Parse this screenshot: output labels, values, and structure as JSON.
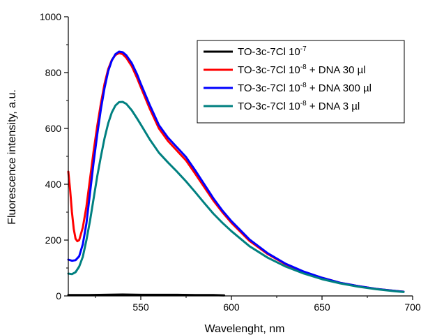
{
  "chart_data": {
    "type": "line",
    "xlabel": "Wavelenght, nm",
    "ylabel": "Fluorescence intensity, a.u.",
    "xlim": [
      510,
      700
    ],
    "ylim": [
      0,
      1000
    ],
    "x_ticks": [
      550,
      600,
      650,
      700
    ],
    "y_ticks": [
      0,
      200,
      400,
      600,
      800,
      1000
    ],
    "grid": false,
    "legend_position": "top-right",
    "series": [
      {
        "name_main": "TO-3c-7Cl 10",
        "name_sup": "-7",
        "name_tail": "",
        "color": "#000000",
        "points": [
          [
            510,
            3
          ],
          [
            520,
            3
          ],
          [
            530,
            4
          ],
          [
            540,
            5
          ],
          [
            550,
            4
          ],
          [
            560,
            4
          ],
          [
            570,
            4
          ],
          [
            580,
            3
          ],
          [
            590,
            3
          ],
          [
            596,
            2
          ]
        ]
      },
      {
        "name_main": "TO-3c-7Cl 10",
        "name_sup": "-8",
        "name_tail": " + DNA 30 µl",
        "color": "#ff0000",
        "points": [
          [
            510,
            445
          ],
          [
            511,
            380
          ],
          [
            512,
            300
          ],
          [
            513,
            240
          ],
          [
            514,
            205
          ],
          [
            515,
            196
          ],
          [
            516,
            200
          ],
          [
            518,
            245
          ],
          [
            520,
            320
          ],
          [
            522,
            420
          ],
          [
            524,
            520
          ],
          [
            526,
            610
          ],
          [
            528,
            690
          ],
          [
            530,
            760
          ],
          [
            532,
            812
          ],
          [
            534,
            845
          ],
          [
            536,
            863
          ],
          [
            538,
            870
          ],
          [
            540,
            866
          ],
          [
            542,
            853
          ],
          [
            545,
            823
          ],
          [
            548,
            780
          ],
          [
            550,
            748
          ],
          [
            555,
            670
          ],
          [
            560,
            600
          ],
          [
            565,
            555
          ],
          [
            570,
            520
          ],
          [
            575,
            485
          ],
          [
            580,
            438
          ],
          [
            585,
            390
          ],
          [
            590,
            342
          ],
          [
            595,
            300
          ],
          [
            600,
            262
          ],
          [
            610,
            197
          ],
          [
            620,
            150
          ],
          [
            630,
            113
          ],
          [
            640,
            86
          ],
          [
            650,
            65
          ],
          [
            660,
            47
          ],
          [
            670,
            35
          ],
          [
            680,
            25
          ],
          [
            690,
            18
          ],
          [
            695,
            15
          ]
        ]
      },
      {
        "name_main": "TO-3c-7Cl 10",
        "name_sup": "-8",
        "name_tail": " + DNA 300 µl",
        "color": "#0000ff",
        "points": [
          [
            510,
            130
          ],
          [
            512,
            126
          ],
          [
            514,
            128
          ],
          [
            516,
            142
          ],
          [
            518,
            185
          ],
          [
            520,
            260
          ],
          [
            522,
            370
          ],
          [
            524,
            480
          ],
          [
            526,
            580
          ],
          [
            528,
            670
          ],
          [
            530,
            745
          ],
          [
            532,
            805
          ],
          [
            534,
            843
          ],
          [
            536,
            866
          ],
          [
            538,
            875
          ],
          [
            540,
            873
          ],
          [
            542,
            862
          ],
          [
            545,
            834
          ],
          [
            548,
            793
          ],
          [
            550,
            760
          ],
          [
            555,
            683
          ],
          [
            560,
            612
          ],
          [
            565,
            567
          ],
          [
            570,
            532
          ],
          [
            575,
            497
          ],
          [
            580,
            450
          ],
          [
            585,
            400
          ],
          [
            590,
            350
          ],
          [
            595,
            306
          ],
          [
            600,
            268
          ],
          [
            610,
            202
          ],
          [
            620,
            153
          ],
          [
            630,
            115
          ],
          [
            640,
            87
          ],
          [
            650,
            65
          ],
          [
            660,
            47
          ],
          [
            670,
            35
          ],
          [
            680,
            25
          ],
          [
            690,
            18
          ],
          [
            695,
            15
          ]
        ]
      },
      {
        "name_main": "TO-3c-7Cl 10",
        "name_sup": "-8",
        "name_tail": " + DNA 3 µl",
        "color": "#008080",
        "points": [
          [
            510,
            80
          ],
          [
            512,
            78
          ],
          [
            514,
            85
          ],
          [
            516,
            105
          ],
          [
            518,
            140
          ],
          [
            520,
            200
          ],
          [
            522,
            270
          ],
          [
            524,
            350
          ],
          [
            526,
            430
          ],
          [
            528,
            500
          ],
          [
            530,
            565
          ],
          [
            532,
            618
          ],
          [
            534,
            657
          ],
          [
            536,
            682
          ],
          [
            538,
            694
          ],
          [
            540,
            695
          ],
          [
            542,
            688
          ],
          [
            545,
            665
          ],
          [
            548,
            635
          ],
          [
            550,
            614
          ],
          [
            555,
            560
          ],
          [
            560,
            513
          ],
          [
            565,
            478
          ],
          [
            570,
            445
          ],
          [
            575,
            410
          ],
          [
            580,
            372
          ],
          [
            585,
            333
          ],
          [
            590,
            295
          ],
          [
            595,
            262
          ],
          [
            600,
            232
          ],
          [
            610,
            178
          ],
          [
            620,
            137
          ],
          [
            630,
            105
          ],
          [
            640,
            80
          ],
          [
            650,
            60
          ],
          [
            660,
            45
          ],
          [
            670,
            33
          ],
          [
            680,
            24
          ],
          [
            690,
            17
          ],
          [
            695,
            14
          ]
        ]
      }
    ]
  }
}
